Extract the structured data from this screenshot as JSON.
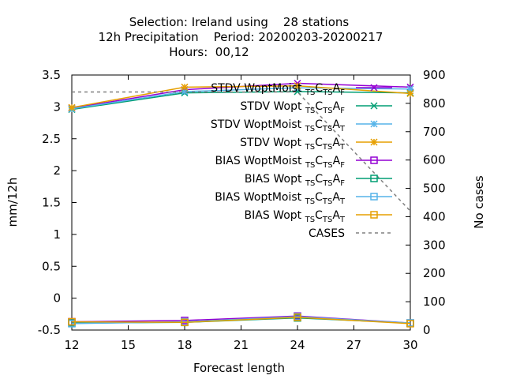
{
  "chart_data": {
    "type": "line",
    "title_lines": [
      "Selection: Ireland using    28 stations",
      "12h Precipitation    Period: 20200203-20200217",
      "Hours:  00,12"
    ],
    "xlabel": "Forecast length",
    "ylabel": "mm/12h",
    "y2label": "No cases",
    "x_ticks": [
      12,
      15,
      18,
      21,
      24,
      27,
      30
    ],
    "y_ticks": [
      -0.5,
      0,
      0.5,
      1,
      1.5,
      2,
      2.5,
      3,
      3.5
    ],
    "y_tick_labels": [
      "-0.5",
      "0",
      "0.5",
      "1",
      "1.5",
      "2",
      "2.5",
      "3",
      "3.5"
    ],
    "y2_ticks": [
      0,
      100,
      200,
      300,
      400,
      500,
      600,
      700,
      800,
      900
    ],
    "xlim": [
      12,
      30
    ],
    "ylim": [
      -0.5,
      3.5
    ],
    "y2lim": [
      0,
      900
    ],
    "legend_position": "top-right",
    "series": [
      {
        "name": "STDV WoptMoist",
        "sub1": "TS",
        "mid": "C",
        "sub2": "TS",
        "end": "A",
        "sub3": "F",
        "color": "#9400d3",
        "marker": "x",
        "axis": "y",
        "x": [
          12,
          18,
          24,
          30
        ],
        "values": [
          2.98,
          3.27,
          3.37,
          3.31
        ]
      },
      {
        "name": "STDV Wopt",
        "sub1": "TS",
        "mid": "C",
        "sub2": "TS",
        "end": "A",
        "sub3": "F",
        "color": "#009e73",
        "marker": "x",
        "axis": "y",
        "x": [
          12,
          18,
          24,
          30
        ],
        "values": [
          2.96,
          3.22,
          3.24,
          3.22
        ]
      },
      {
        "name": "STDV WoptMoist",
        "sub1": "TS",
        "mid": "C",
        "sub2": "TS",
        "end": "A",
        "sub3": "T",
        "color": "#56b4e9",
        "marker": "star",
        "axis": "y",
        "x": [
          12,
          18,
          24,
          30
        ],
        "values": [
          2.97,
          3.24,
          3.3,
          3.28
        ]
      },
      {
        "name": "STDV Wopt",
        "sub1": "TS",
        "mid": "C",
        "sub2": "TS",
        "end": "A",
        "sub3": "T",
        "color": "#e69f00",
        "marker": "star",
        "axis": "y",
        "x": [
          12,
          18,
          24,
          30
        ],
        "values": [
          2.99,
          3.31,
          3.33,
          3.21
        ]
      },
      {
        "name": "BIAS WoptMoist",
        "sub1": "TS",
        "mid": "C",
        "sub2": "TS",
        "end": "A",
        "sub3": "F",
        "color": "#9400d3",
        "marker": "square",
        "axis": "y",
        "x": [
          12,
          18,
          24,
          30
        ],
        "values": [
          -0.37,
          -0.35,
          -0.28,
          -0.39
        ]
      },
      {
        "name": "BIAS Wopt",
        "sub1": "TS",
        "mid": "C",
        "sub2": "TS",
        "end": "A",
        "sub3": "F",
        "color": "#009e73",
        "marker": "square",
        "axis": "y",
        "x": [
          12,
          18,
          24,
          30
        ],
        "values": [
          -0.39,
          -0.38,
          -0.31,
          -0.39
        ]
      },
      {
        "name": "BIAS WoptMoist",
        "sub1": "TS",
        "mid": "C",
        "sub2": "TS",
        "end": "A",
        "sub3": "T",
        "color": "#56b4e9",
        "marker": "square",
        "axis": "y",
        "x": [
          12,
          18,
          24,
          30
        ],
        "values": [
          -0.4,
          -0.37,
          -0.29,
          -0.39
        ]
      },
      {
        "name": "BIAS Wopt",
        "sub1": "TS",
        "mid": "C",
        "sub2": "TS",
        "end": "A",
        "sub3": "T",
        "color": "#e69f00",
        "marker": "square",
        "axis": "y",
        "x": [
          12,
          18,
          24,
          30
        ],
        "values": [
          -0.37,
          -0.38,
          -0.3,
          -0.4
        ]
      },
      {
        "name": "CASES",
        "color": "#808080",
        "dashed": true,
        "marker": "none",
        "axis": "y2",
        "x": [
          12,
          18,
          24,
          30
        ],
        "values": [
          840,
          840,
          840,
          420
        ]
      }
    ]
  }
}
